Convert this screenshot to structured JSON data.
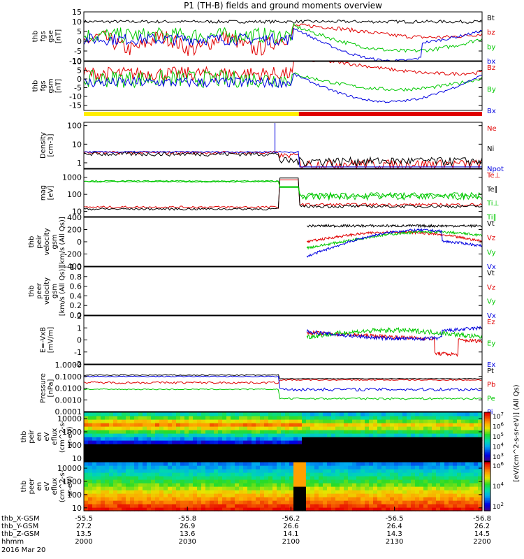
{
  "title": "P1 (TH-B) fields and ground moments overview",
  "colors": {
    "black": "#000000",
    "red": "#e00000",
    "green": "#00c800",
    "blue": "#0000e0",
    "yellow": "#ffee00",
    "purple": "#9400d3"
  },
  "chart_data": [
    {
      "type": "line",
      "id": "fgs_gse",
      "ylabel_lines": [
        "thb",
        "fgs",
        "gse",
        "[nT]"
      ],
      "ylim": [
        -10,
        15
      ],
      "yticks": [
        -10,
        -5,
        0,
        5,
        10,
        15
      ],
      "series": [
        {
          "name": "Bt",
          "color": "#000000"
        },
        {
          "name": "bz",
          "color": "#e00000"
        },
        {
          "name": "by",
          "color": "#00c800"
        },
        {
          "name": "bx",
          "color": "#0000e0"
        }
      ]
    },
    {
      "type": "line",
      "id": "fgs_gsm",
      "ylabel_lines": [
        "thb",
        "fgs",
        "gsm",
        "[nT]"
      ],
      "ylim": [
        -18,
        10
      ],
      "yticks": [
        -15,
        -10,
        -5,
        0,
        5,
        10
      ],
      "series": [
        {
          "name": "Bz",
          "color": "#e00000"
        },
        {
          "name": "By",
          "color": "#00c800"
        },
        {
          "name": "Bx",
          "color": "#0000e0"
        }
      ]
    },
    {
      "type": "line",
      "id": "density",
      "ylabel_lines": [
        "Density",
        "[cm-3]"
      ],
      "log": true,
      "ylim": [
        0.5,
        150
      ],
      "yticks": [
        1,
        10,
        100
      ],
      "yticklabels": [
        "1",
        "10",
        "100"
      ],
      "series": [
        {
          "name": "Ne",
          "color": "#e00000"
        },
        {
          "name": "Ni",
          "color": "#000000"
        },
        {
          "name": "Npot",
          "color": "#0000e0"
        }
      ]
    },
    {
      "type": "line",
      "id": "temperature",
      "ylabel_lines": [
        "mag",
        "[eV]"
      ],
      "log": true,
      "ylim": [
        5,
        3000
      ],
      "yticks": [
        10,
        100,
        1000
      ],
      "yticklabels": [
        "10",
        "100",
        "1000"
      ],
      "series": [
        {
          "name": "Te⊥",
          "color": "#e00000"
        },
        {
          "name": "Te∥",
          "color": "#000000"
        },
        {
          "name": "Ti⊥",
          "color": "#00c800"
        },
        {
          "name": "Ti∥",
          "color": "#00c800"
        }
      ]
    },
    {
      "type": "line",
      "id": "velocity_gsm",
      "ylabel_lines": [
        "thb",
        "peir",
        "velocity",
        "gsm",
        "[km/s (All Qs)]"
      ],
      "ylim": [
        -400,
        400
      ],
      "yticks": [
        -400,
        -200,
        0,
        200,
        400
      ],
      "series": [
        {
          "name": "Vt",
          "color": "#000000"
        },
        {
          "name": "Vz",
          "color": "#e00000"
        },
        {
          "name": "Vy",
          "color": "#00c800"
        },
        {
          "name": "Vx",
          "color": "#0000e0"
        }
      ]
    },
    {
      "type": "line",
      "id": "velocity_empty",
      "ylabel_lines": [
        "thb",
        "peer",
        "velocity",
        "gsm",
        "[km/s (All Qs)]"
      ],
      "ylim": [
        0,
        1
      ],
      "yticks": [
        0,
        0.2,
        0.4,
        0.6,
        0.8,
        1.0
      ],
      "yticklabels": [
        "0.0",
        "0.2",
        "0.4",
        "0.6",
        "0.8",
        "1.0"
      ],
      "series": [
        {
          "name": "Vt",
          "color": "#000000"
        },
        {
          "name": "Vz",
          "color": "#e00000"
        },
        {
          "name": "Vy",
          "color": "#00c800"
        },
        {
          "name": "Vx",
          "color": "#0000e0"
        }
      ]
    },
    {
      "type": "line",
      "id": "efield",
      "ylabel_lines": [
        "E=-VxB",
        "[mV/m]"
      ],
      "ylim": [
        -2,
        2
      ],
      "yticks": [
        -2,
        -1,
        0,
        1,
        2
      ],
      "series": [
        {
          "name": "Ez",
          "color": "#e00000"
        },
        {
          "name": "Ey",
          "color": "#00c800"
        },
        {
          "name": "Ex",
          "color": "#0000e0"
        }
      ]
    },
    {
      "type": "line",
      "id": "pressure",
      "ylabel_lines": [
        "Pressure",
        "[nPa]"
      ],
      "log": true,
      "ylim": [
        0.0001,
        1
      ],
      "yticks": [
        0.0001,
        0.001,
        0.01,
        0.1,
        1
      ],
      "yticklabels": [
        "0.0001",
        "0.0010",
        "0.0100",
        "0.1000",
        "1.0000"
      ],
      "series": [
        {
          "name": "Pt",
          "color": "#000000"
        },
        {
          "name": "Pb",
          "color": "#e00000"
        },
        {
          "name": "Pe",
          "color": "#00c800"
        },
        {
          "name": "Pi",
          "color": "#0000e0"
        }
      ]
    },
    {
      "type": "heatmap",
      "id": "peir_eflux",
      "ylabel_lines": [
        "thb",
        "peir",
        "en",
        "eV",
        "eflux",
        "(cm^2-s-",
        "sr-eV)"
      ],
      "log": true,
      "ylim": [
        6,
        30000
      ],
      "yticks": [
        10,
        100,
        1000,
        10000
      ],
      "yticklabels": [
        "10",
        "100",
        "1000",
        "10000"
      ],
      "colorbar_exponents": [
        "3",
        "4",
        "5",
        "6",
        "7"
      ],
      "colorbar_label": "[eV/(cm^2-s-sr-eV)] (All Qs)"
    },
    {
      "type": "heatmap",
      "id": "peer_eflux",
      "ylabel_lines": [
        "thb",
        "peer",
        "en",
        "eV",
        "eflux",
        "(cm^2-s-",
        "sr-eV)"
      ],
      "log": true,
      "ylim": [
        6,
        30000
      ],
      "yticks": [
        10,
        100,
        1000,
        10000
      ],
      "yticklabels": [
        "10",
        "100",
        "1000",
        "10000"
      ],
      "colorbar_exponents": [
        "2",
        "4",
        "6"
      ],
      "colorbar_label": "[eV/(cm^2-s-sr-eV)]"
    }
  ],
  "strip": {
    "segments": [
      {
        "color": "#ffee00"
      },
      {
        "color": "#e00000"
      }
    ]
  },
  "xaxis": {
    "rows": [
      {
        "label": "thb_X-GSM",
        "values": [
          "-55.5",
          "-55.8",
          "-56.2",
          "-56.5",
          "-56.8"
        ]
      },
      {
        "label": "thb_Y-GSM",
        "values": [
          "27.2",
          "26.9",
          "26.6",
          "26.4",
          "26.2"
        ]
      },
      {
        "label": "thb_Z-GSM",
        "values": [
          "13.5",
          "13.6",
          "14.1",
          "14.3",
          "14.5"
        ]
      },
      {
        "label": "hhmm",
        "values": [
          "2000",
          "2030",
          "2100",
          "2130",
          "2200"
        ]
      }
    ],
    "date": "2016 Mar 20"
  }
}
